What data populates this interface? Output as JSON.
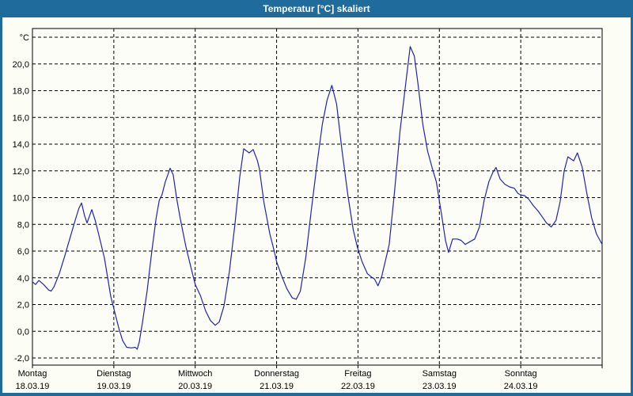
{
  "window": {
    "title": "Temperatur [°C] skaliert",
    "titlebar_color": "#1e6b9c",
    "border_color": "#1e6b9c",
    "background_color": "#fcfdf5"
  },
  "chart_data": {
    "type": "line",
    "title": "Temperatur [°C] skaliert",
    "y_unit_label": "°C",
    "ylim": [
      -2,
      22
    ],
    "y_step": 2,
    "y_tick_labels": [
      "-2,0",
      "0,0",
      "2,0",
      "4,0",
      "6,0",
      "8,0",
      "10,0",
      "12,0",
      "14,0",
      "16,0",
      "18,0",
      "20,0",
      "°C"
    ],
    "grid": "dashed",
    "legend": "none",
    "line_color": "#2222b4",
    "x_hours_span": 168,
    "days": [
      {
        "name": "Montag",
        "date": "18.03.19"
      },
      {
        "name": "Dienstag",
        "date": "19.03.19"
      },
      {
        "name": "Mittwoch",
        "date": "20.03.19"
      },
      {
        "name": "Donnerstag",
        "date": "21.03.19"
      },
      {
        "name": "Freitag",
        "date": "22.03.19"
      },
      {
        "name": "Samstag",
        "date": "23.03.19"
      },
      {
        "name": "Sonntag",
        "date": "24.03.19"
      }
    ],
    "series": [
      {
        "name": "Temperatur [°C]",
        "points": [
          [
            0,
            3.7
          ],
          [
            0.9,
            3.5
          ],
          [
            1.9,
            3.8
          ],
          [
            3.3,
            3.5
          ],
          [
            4.7,
            3.1
          ],
          [
            5.5,
            3.0
          ],
          [
            6.3,
            3.3
          ],
          [
            7.9,
            4.3
          ],
          [
            9.5,
            5.6
          ],
          [
            10.3,
            6.3
          ],
          [
            12.6,
            8.3
          ],
          [
            13.7,
            9.2
          ],
          [
            14.5,
            9.6
          ],
          [
            15.3,
            8.7
          ],
          [
            16.1,
            8.1
          ],
          [
            17.5,
            9.1
          ],
          [
            18.5,
            8.3
          ],
          [
            19.4,
            7.4
          ],
          [
            21.2,
            5.5
          ],
          [
            23.1,
            2.6
          ],
          [
            24.5,
            1.2
          ],
          [
            25.5,
            0.2
          ],
          [
            26.6,
            -0.7
          ],
          [
            27.8,
            -1.2
          ],
          [
            29.2,
            -1.25
          ],
          [
            30.3,
            -1.2
          ],
          [
            30.9,
            -1.35
          ],
          [
            31.5,
            -0.8
          ],
          [
            32.4,
            0.6
          ],
          [
            33.8,
            3.0
          ],
          [
            35.2,
            6.0
          ],
          [
            36.5,
            8.5
          ],
          [
            37.4,
            9.8
          ],
          [
            38.2,
            10.2
          ],
          [
            39.2,
            11.2
          ],
          [
            40.6,
            12.2
          ],
          [
            41.5,
            11.7
          ],
          [
            42.5,
            10.0
          ],
          [
            43.6,
            8.4
          ],
          [
            45.2,
            6.4
          ],
          [
            46.8,
            4.7
          ],
          [
            48,
            3.5
          ],
          [
            49.5,
            2.7
          ],
          [
            51.1,
            1.5
          ],
          [
            52.5,
            0.8
          ],
          [
            53.9,
            0.45
          ],
          [
            55.1,
            0.7
          ],
          [
            56.5,
            1.9
          ],
          [
            58.1,
            4.5
          ],
          [
            59.7,
            8.0
          ],
          [
            61.1,
            11.5
          ],
          [
            62.3,
            13.65
          ],
          [
            63.9,
            13.35
          ],
          [
            65.1,
            13.6
          ],
          [
            66.3,
            12.8
          ],
          [
            66.9,
            12.2
          ],
          [
            68.3,
            9.6
          ],
          [
            70,
            7.3
          ],
          [
            71.4,
            5.9
          ],
          [
            72,
            5.2
          ],
          [
            73.4,
            4.2
          ],
          [
            75,
            3.2
          ],
          [
            76.6,
            2.5
          ],
          [
            77.8,
            2.4
          ],
          [
            79,
            3.0
          ],
          [
            80.6,
            5.5
          ],
          [
            82.2,
            9.0
          ],
          [
            83.9,
            12.5
          ],
          [
            85.5,
            15.5
          ],
          [
            86.9,
            17.3
          ],
          [
            88.3,
            18.4
          ],
          [
            89.7,
            17.0
          ],
          [
            91.3,
            13.5
          ],
          [
            93,
            10.2
          ],
          [
            94.6,
            7.6
          ],
          [
            95.8,
            6.3
          ],
          [
            97.2,
            5.2
          ],
          [
            98.8,
            4.3
          ],
          [
            100.3,
            4.0
          ],
          [
            100.9,
            3.9
          ],
          [
            101.9,
            3.4
          ],
          [
            103,
            4.1
          ],
          [
            105.2,
            6.5
          ],
          [
            106.8,
            10.5
          ],
          [
            108.4,
            15.0
          ],
          [
            109.6,
            17.5
          ],
          [
            110.3,
            19.0
          ],
          [
            111.4,
            21.3
          ],
          [
            112.6,
            20.6
          ],
          [
            113.7,
            18.5
          ],
          [
            115.1,
            15.5
          ],
          [
            116.5,
            13.5
          ],
          [
            117.9,
            12.2
          ],
          [
            119.1,
            11.2
          ],
          [
            120.6,
            8.8
          ],
          [
            121.8,
            6.8
          ],
          [
            122.7,
            5.9
          ],
          [
            123.9,
            6.9
          ],
          [
            125.3,
            6.9
          ],
          [
            126.4,
            6.8
          ],
          [
            127.6,
            6.5
          ],
          [
            129,
            6.7
          ],
          [
            130.4,
            6.9
          ],
          [
            131.8,
            7.8
          ],
          [
            133.2,
            9.8
          ],
          [
            134.6,
            11.2
          ],
          [
            135.8,
            11.9
          ],
          [
            136.7,
            12.25
          ],
          [
            137.9,
            11.4
          ],
          [
            139.3,
            11.0
          ],
          [
            140.7,
            10.8
          ],
          [
            142.1,
            10.7
          ],
          [
            143.2,
            10.3
          ],
          [
            144,
            10.2
          ],
          [
            145.1,
            10.15
          ],
          [
            146.3,
            9.9
          ],
          [
            147.7,
            9.4
          ],
          [
            149.1,
            9.0
          ],
          [
            150.5,
            8.5
          ],
          [
            151.6,
            8.1
          ],
          [
            153,
            7.8
          ],
          [
            154.4,
            8.3
          ],
          [
            155.6,
            9.7
          ],
          [
            156.8,
            12.0
          ],
          [
            157.9,
            13.05
          ],
          [
            159.6,
            12.75
          ],
          [
            160.7,
            13.35
          ],
          [
            162.1,
            12.3
          ],
          [
            163.5,
            10.3
          ],
          [
            164.9,
            8.5
          ],
          [
            166.3,
            7.3
          ],
          [
            168,
            6.5
          ]
        ]
      }
    ]
  }
}
